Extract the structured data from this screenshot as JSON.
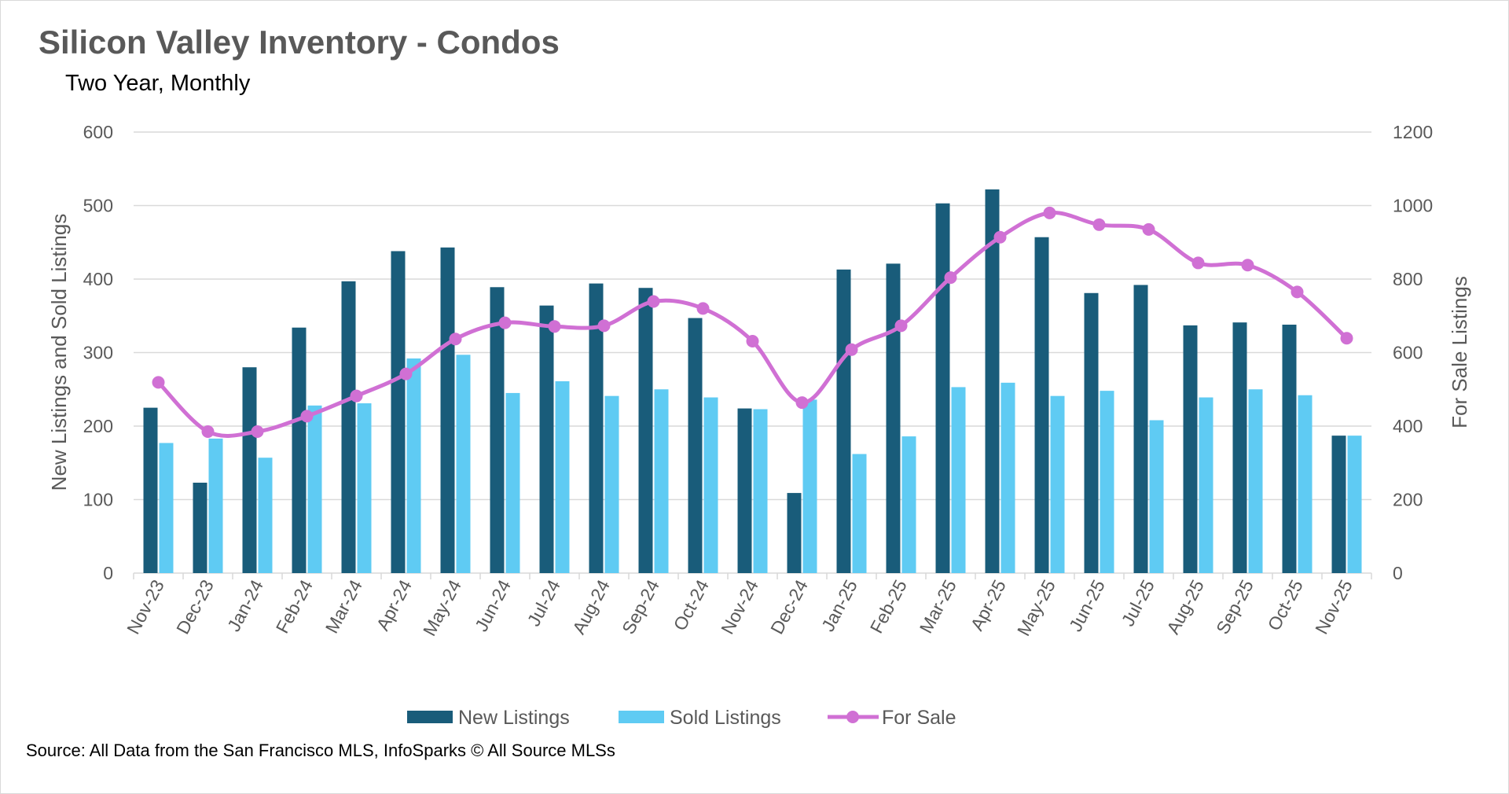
{
  "chart_data": {
    "type": "bar+line",
    "title": "Silicon Valley Inventory - Condos",
    "subtitle": "Two Year, Monthly",
    "source": "Source: All Data from the San Francisco MLS, InfoSparks © All Source MLSs",
    "categories": [
      "Nov-23",
      "Dec-23",
      "Jan-24",
      "Feb-24",
      "Mar-24",
      "Apr-24",
      "May-24",
      "Jun-24",
      "Jul-24",
      "Aug-24",
      "Sep-24",
      "Oct-24",
      "Nov-24",
      "Dec-24",
      "Jan-25",
      "Feb-25",
      "Mar-25",
      "Apr-25",
      "May-25",
      "Jun-25",
      "Jul-25",
      "Aug-25",
      "Sep-25",
      "Oct-25",
      "Nov-25"
    ],
    "ylabel": "New Listings and Sold Listings",
    "y2label": "For Sale Listings",
    "ylim": [
      0,
      600
    ],
    "y2lim": [
      0,
      1200
    ],
    "yticks": [
      "0",
      "100",
      "200",
      "300",
      "400",
      "500",
      "600"
    ],
    "y2ticks": [
      "0",
      "200",
      "400",
      "600",
      "800",
      "1000",
      "1200"
    ],
    "grid": true,
    "legend_position": "bottom",
    "series": [
      {
        "name": "New Listings",
        "type": "bar",
        "axis": "left",
        "color": "#195c7a",
        "values": [
          225,
          123,
          280,
          334,
          397,
          438,
          443,
          389,
          364,
          394,
          388,
          347,
          224,
          109,
          413,
          421,
          503,
          522,
          457,
          381,
          392,
          337,
          341,
          338,
          187
        ]
      },
      {
        "name": "Sold Listings",
        "type": "bar",
        "axis": "left",
        "color": "#5fcbf3",
        "values": [
          177,
          183,
          157,
          228,
          231,
          292,
          297,
          245,
          261,
          241,
          250,
          239,
          223,
          236,
          162,
          186,
          253,
          259,
          241,
          248,
          208,
          239,
          250,
          242,
          187
        ]
      },
      {
        "name": "For Sale",
        "type": "line",
        "axis": "right",
        "color": "#d070d4",
        "values": [
          519,
          385,
          385,
          427,
          482,
          542,
          637,
          681,
          671,
          673,
          739,
          720,
          631,
          464,
          608,
          673,
          804,
          914,
          980,
          948,
          935,
          844,
          838,
          765,
          639
        ]
      }
    ]
  }
}
